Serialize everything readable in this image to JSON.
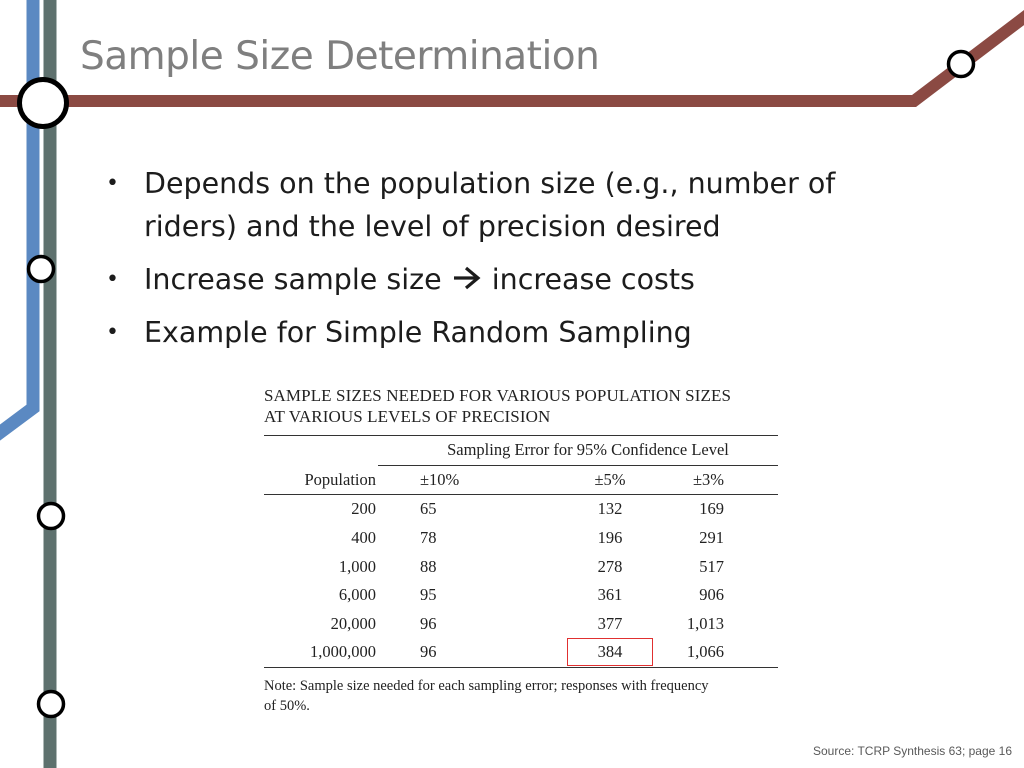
{
  "slide": {
    "title": "Sample Size Determination",
    "bullets": [
      {
        "text": "Depends on the population size (e.g., number of riders) and the level of precision desired"
      },
      {
        "text_before": "Increase sample size",
        "icon": "right-arrow-icon",
        "text_after": "increase costs"
      },
      {
        "text": "Example for Simple Random Sampling"
      }
    ],
    "source": "Source: TCRP Synthesis 63; page 16"
  },
  "table": {
    "caption_line1": "SAMPLE SIZES NEEDED FOR VARIOUS POPULATION SIZES",
    "caption_line2": "AT VARIOUS LEVELS OF PRECISION",
    "spanner": "Sampling Error for 95% Confidence Level",
    "headers": [
      "Population",
      "±10%",
      "±5%",
      "±3%"
    ],
    "rows": [
      [
        "200",
        "65",
        "132",
        "169"
      ],
      [
        "400",
        "78",
        "196",
        "291"
      ],
      [
        "1,000",
        "88",
        "278",
        "517"
      ],
      [
        "6,000",
        "95",
        "361",
        "906"
      ],
      [
        "20,000",
        "96",
        "377",
        "1,013"
      ],
      [
        "1,000,000",
        "96",
        "384",
        "1,066"
      ]
    ],
    "highlighted_cell": "384",
    "note_line1": "Note: Sample size needed for each sampling error; responses with frequency",
    "note_line2": "of 50%."
  },
  "colors": {
    "title": "#7f7f7f",
    "brown_line": "#8b4a43",
    "blue_line": "#5b89c2",
    "slate_line": "#5e716e",
    "highlight": "#e03030"
  }
}
